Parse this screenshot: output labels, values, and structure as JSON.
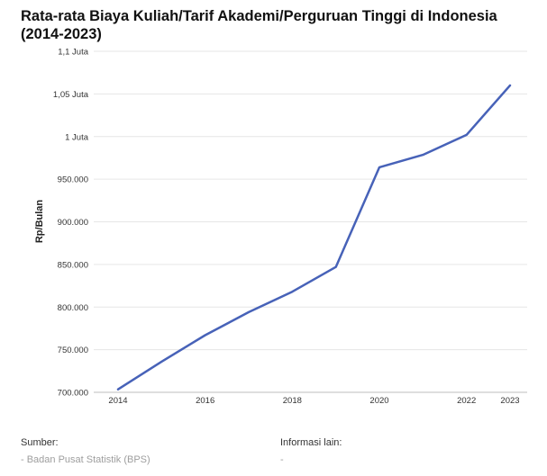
{
  "chart_data": {
    "type": "line",
    "title": "Rata-rata Biaya Kuliah/Tarif Akademi/Perguruan Tinggi di Indonesia",
    "subtitle": "(2014-2023)",
    "xlabel": "",
    "ylabel": "Rp/Bulan",
    "x": [
      2014,
      2015,
      2016,
      2017,
      2018,
      2019,
      2020,
      2021,
      2022,
      2023
    ],
    "series": [
      {
        "values": [
          703500,
          736000,
          767000,
          794000,
          818000,
          847000,
          964000,
          978500,
          1002000,
          1060000
        ]
      }
    ],
    "ylim": [
      700000,
      1100000
    ],
    "yticks": [
      {
        "value": 700000,
        "label": "700.000"
      },
      {
        "value": 750000,
        "label": "750.000"
      },
      {
        "value": 800000,
        "label": "800.000"
      },
      {
        "value": 850000,
        "label": "850.000"
      },
      {
        "value": 900000,
        "label": "900.000"
      },
      {
        "value": 950000,
        "label": "950.000"
      },
      {
        "value": 1000000,
        "label": "1 Juta"
      },
      {
        "value": 1050000,
        "label": "1,05 Juta"
      },
      {
        "value": 1100000,
        "label": "1,1 Juta"
      }
    ],
    "xticks": [
      {
        "value": 2014,
        "label": "2014"
      },
      {
        "value": 2016,
        "label": "2016"
      },
      {
        "value": 2018,
        "label": "2018"
      },
      {
        "value": 2020,
        "label": "2020"
      },
      {
        "value": 2022,
        "label": "2022"
      },
      {
        "value": 2023,
        "label": "2023"
      }
    ],
    "grid": true,
    "line_color": "#4762b8",
    "grid_color": "#e6e6e6"
  },
  "footer": {
    "source_label": "Sumber:",
    "source_value": "- Badan Pusat Statistik (BPS)",
    "info_label": "Informasi lain:",
    "info_value": "-"
  }
}
